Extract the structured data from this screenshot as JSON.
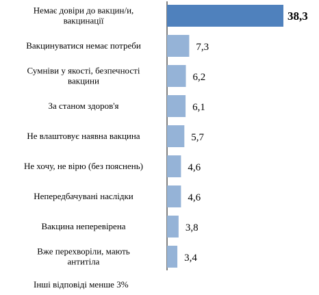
{
  "chart_data": {
    "type": "bar",
    "orientation": "horizontal",
    "categories": [
      [
        "Немає довіри до вакцин/и,",
        "вакцинації"
      ],
      [
        "Вакцинуватися немає потреби"
      ],
      [
        "Сумніви у якості, безпечності",
        "вакцини"
      ],
      [
        "За станом здоров'я"
      ],
      [
        "Не влаштовує наявна вакцина"
      ],
      [
        "Не хочу,  не вірю (без пояснень)"
      ],
      [
        "Непередбачувані наслідки"
      ],
      [
        "Вакцина неперевірена"
      ],
      [
        "Вже перехворіли, мають",
        "антитіла"
      ]
    ],
    "values": [
      38.3,
      7.3,
      6.2,
      6.1,
      5.7,
      4.6,
      4.6,
      3.8,
      3.4
    ],
    "value_labels": [
      "38,3",
      "7,3",
      "6,2",
      "6,1",
      "5,7",
      "4,6",
      "4,6",
      "3,8",
      "3,4"
    ],
    "highlight_index": 0,
    "colors": {
      "highlight": "#4f81bd",
      "default": "#95b3d7",
      "axis": "#000000"
    },
    "footnote": "Інші відповіді менше 3%",
    "title": "",
    "xlabel": "",
    "ylabel": "",
    "xlim": [
      0,
      38.3
    ],
    "grid": false,
    "legend": "none"
  }
}
